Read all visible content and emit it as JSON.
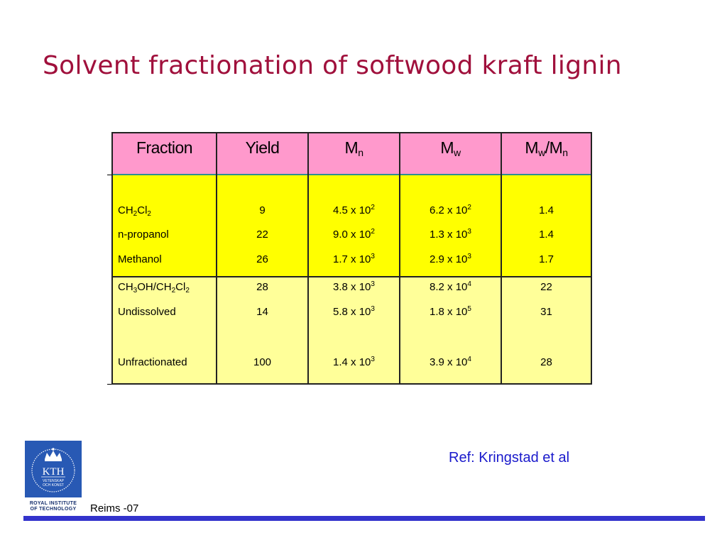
{
  "slide": {
    "title": "Solvent fractionation of softwood kraft lignin",
    "reference": "Ref: Kringstad et al",
    "footer": "Reims -07"
  },
  "logo": {
    "acronym": "KTH",
    "motto_line1": "VETENSKAP",
    "motto_line2": "OCH KONST",
    "institution": "ROYAL INSTITUTE\nOF TECHNOLOGY"
  },
  "table": {
    "headers": [
      "Fraction",
      "Yield",
      "Mn",
      "Mw",
      "Mw/Mn"
    ],
    "rows": [
      [
        "CH2Cl2",
        "9",
        "4.5 x 10^2",
        "6.2 x 10^2",
        "1.4"
      ],
      [
        "n-propanol",
        "22",
        "9.0 x 10^2",
        "1.3 x 10^3",
        "1.4"
      ],
      [
        "Methanol",
        "26",
        "1.7 x 10^3",
        "2.9 x 10^3",
        "1.7"
      ],
      [
        "CH3OH/CH2Cl2",
        "28",
        "3.8 x 10^3",
        "8.2 x 10^4",
        "22"
      ],
      [
        "Undissolved",
        "14",
        "5.8 x 10^3",
        "1.8 x 10^5",
        "31"
      ],
      [
        "Unfractionated",
        "100",
        "1.4 x 10^3",
        "3.9 x 10^4",
        "28"
      ]
    ]
  }
}
